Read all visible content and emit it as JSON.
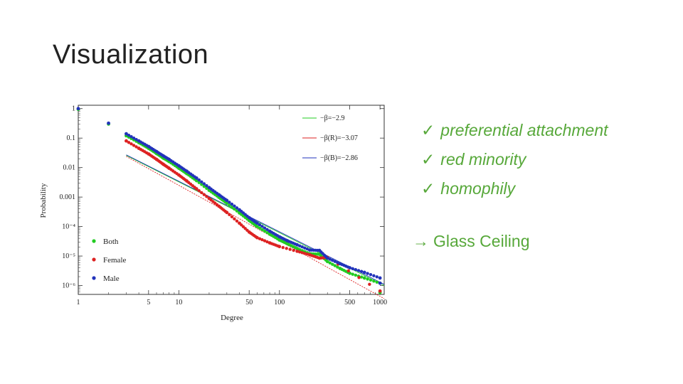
{
  "slide": {
    "title": "Visualization",
    "bullets": [
      {
        "check": "✓",
        "text": "preferential attachment"
      },
      {
        "check": "✓",
        "text": "red minority"
      },
      {
        "check": "✓",
        "text": "homophily"
      }
    ],
    "conclusion": {
      "arrow": "→",
      "text": "Glass Ceiling"
    }
  },
  "colors": {
    "both": "#22cc22",
    "female": "#dd2222",
    "male": "#2233bb",
    "text_accent": "#57a83a"
  },
  "chart_data": {
    "type": "scatter",
    "xlabel": "Degree",
    "ylabel": "Probability",
    "xscale": "log",
    "yscale": "log",
    "xlim": [
      1,
      1100
    ],
    "ylim": [
      5e-07,
      1.3
    ],
    "x_ticks": [
      {
        "value": 1,
        "label": "1"
      },
      {
        "value": 5,
        "label": "5"
      },
      {
        "value": 10,
        "label": "10"
      },
      {
        "value": 50,
        "label": "50"
      },
      {
        "value": 100,
        "label": "100"
      },
      {
        "value": 500,
        "label": "500"
      },
      {
        "value": 1000,
        "label": "1000"
      }
    ],
    "y_ticks": [
      {
        "value": 1,
        "label": "1"
      },
      {
        "value": 0.1,
        "label": "0.1"
      },
      {
        "value": 0.01,
        "label": "0.01"
      },
      {
        "value": 0.001,
        "label": "0.001"
      },
      {
        "value": 0.0001,
        "label": "10⁻⁴"
      },
      {
        "value": 1e-05,
        "label": "10⁻⁵"
      },
      {
        "value": 1e-06,
        "label": "10⁻⁶"
      }
    ],
    "fit_lines": [
      {
        "name": "−β=−2.9",
        "color": "#22cc22",
        "x": [
          3,
          1100
        ],
        "y": [
          0.026,
          1e-06
        ]
      },
      {
        "name": "−β(R)=−3.07",
        "color": "#dd2222",
        "x": [
          3,
          1100
        ],
        "y": [
          0.024,
          3.6e-07
        ]
      },
      {
        "name": "−β(B)=−2.86",
        "color": "#2233bb",
        "x": [
          3,
          1100
        ],
        "y": [
          0.027,
          1.1e-06
        ]
      }
    ],
    "series": [
      {
        "name": "Both",
        "color": "#22cc22",
        "points": [
          [
            1,
            0.95
          ],
          [
            2,
            0.3
          ],
          [
            3,
            0.12
          ],
          [
            4,
            0.07
          ],
          [
            5,
            0.045
          ],
          [
            6,
            0.03
          ],
          [
            7,
            0.021
          ],
          [
            8,
            0.016
          ],
          [
            10,
            0.0095
          ],
          [
            12,
            0.0062
          ],
          [
            15,
            0.0036
          ],
          [
            20,
            0.0017
          ],
          [
            25,
            0.00098
          ],
          [
            30,
            0.00062
          ],
          [
            40,
            0.00029
          ],
          [
            50,
            0.00016
          ],
          [
            60,
            0.0001
          ],
          [
            80,
            5.5e-05
          ],
          [
            100,
            3.5e-05
          ],
          [
            120,
            2.6e-05
          ],
          [
            150,
            1.8e-05
          ],
          [
            200,
            1.2e-05
          ],
          [
            250,
            1.15e-05
          ],
          [
            300,
            6.5e-06
          ],
          [
            400,
            3.8e-06
          ],
          [
            500,
            2.6e-06
          ],
          [
            700,
            1.8e-06
          ],
          [
            1000,
            1.2e-06
          ],
          [
            1000,
            5.8e-07
          ]
        ]
      },
      {
        "name": "Female",
        "color": "#dd2222",
        "points": [
          [
            3,
            0.08
          ],
          [
            4,
            0.045
          ],
          [
            5,
            0.029
          ],
          [
            6,
            0.019
          ],
          [
            7,
            0.013
          ],
          [
            8,
            0.0095
          ],
          [
            10,
            0.0056
          ],
          [
            12,
            0.0035
          ],
          [
            15,
            0.0019
          ],
          [
            20,
            0.0009
          ],
          [
            25,
            0.00049
          ],
          [
            30,
            0.0003
          ],
          [
            40,
            0.00013
          ],
          [
            50,
            6.5e-05
          ],
          [
            60,
            4.2e-05
          ],
          [
            80,
            2.8e-05
          ],
          [
            100,
            2.1e-05
          ],
          [
            150,
            1.45e-05
          ],
          [
            200,
            1.1e-05
          ],
          [
            250,
            8.5e-06
          ],
          [
            300,
            9e-06
          ],
          [
            1000,
            6.5e-07
          ]
        ]
      },
      {
        "name": "Male",
        "color": "#2233bb",
        "points": [
          [
            1,
            1.0
          ],
          [
            2,
            0.32
          ],
          [
            3,
            0.14
          ],
          [
            4,
            0.08
          ],
          [
            5,
            0.052
          ],
          [
            6,
            0.035
          ],
          [
            7,
            0.025
          ],
          [
            8,
            0.019
          ],
          [
            10,
            0.0115
          ],
          [
            12,
            0.0075
          ],
          [
            15,
            0.0044
          ],
          [
            20,
            0.0021
          ],
          [
            25,
            0.0012
          ],
          [
            30,
            0.00077
          ],
          [
            40,
            0.00037
          ],
          [
            50,
            0.0002
          ],
          [
            60,
            0.00013
          ],
          [
            80,
            7e-05
          ],
          [
            100,
            4.5e-05
          ],
          [
            120,
            3.3e-05
          ],
          [
            150,
            2.4e-05
          ],
          [
            200,
            1.6e-05
          ],
          [
            250,
            1.55e-05
          ],
          [
            300,
            8.5e-06
          ],
          [
            400,
            5.5e-06
          ],
          [
            500,
            4e-06
          ],
          [
            700,
            2.8e-06
          ],
          [
            1000,
            1.8e-06
          ],
          [
            1000,
            1.2e-06
          ]
        ]
      }
    ],
    "legend_fits_position": "top-right",
    "legend_series_position": "bottom-left"
  }
}
